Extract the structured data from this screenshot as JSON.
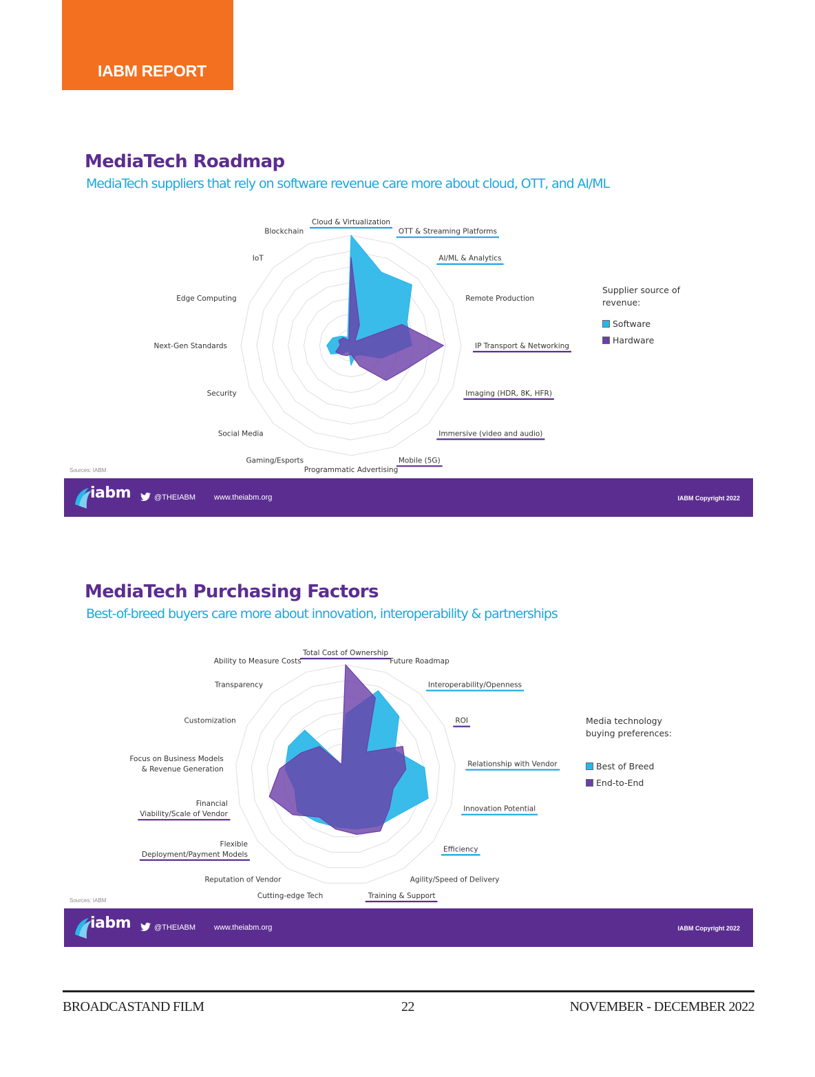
{
  "header": {
    "label": "IABM REPORT"
  },
  "slides": [
    {
      "title": "MediaTech Roadmap",
      "subtitle": "MediaTech suppliers that rely on software revenue care more about cloud, OTT, and AI/ML",
      "source": "Sources: IABM",
      "legend": {
        "title_line1": "Supplier source of",
        "title_line2": "revenue:"
      },
      "footer": {
        "logo": "iabm",
        "handle": "@THEIABM",
        "url": "www.theiabm.org",
        "copyright": "IABM Copyright 2022"
      }
    },
    {
      "title": "MediaTech Purchasing Factors",
      "subtitle": "Best-of-breed buyers care more about innovation, interoperability & partnerships",
      "source": "Sources: IABM",
      "legend": {
        "title_line1": "Media technology",
        "title_line2": "buying preferences:"
      },
      "footer": {
        "logo": "iabm",
        "handle": "@THEIABM",
        "url": "www.theiabm.org",
        "copyright": "IABM Copyright 2022"
      }
    }
  ],
  "colors": {
    "orange": "#f37021",
    "purple": "#5b2d91",
    "blue": "#1aa7de",
    "softwareFill": "#29b6e8",
    "hardwareFill": "#6a3fa8"
  },
  "chart_data": [
    {
      "type": "radar",
      "categories": [
        "Cloud & Virtualization",
        "OTT & Streaming Platforms",
        "AI/ML & Analytics",
        "Remote Production",
        "IP Transport & Networking",
        "Imaging (HDR, 8K, HFR)",
        "Immersive (video and audio)",
        "Mobile (5G)",
        "Programmatic Advertising",
        "Gaming/Esports",
        "Social Media",
        "Security",
        "Next-Gen Standards",
        "Edge Computing",
        "IoT",
        "Blockchain"
      ],
      "underline": [
        "blue",
        "blue",
        "blue",
        "none",
        "purple",
        "purple",
        "purple",
        "purple",
        "none",
        "none",
        "none",
        "none",
        "none",
        "none",
        "none",
        "none"
      ],
      "series": [
        {
          "name": "Software",
          "color": "#29b6e8",
          "values": [
            1.0,
            0.72,
            0.78,
            0.55,
            0.55,
            0.3,
            0.12,
            0.1,
            0.18,
            0.05,
            0.1,
            0.2,
            0.22,
            0.18,
            0.12,
            0.08
          ]
        },
        {
          "name": "Hardware",
          "color": "#6a3fa8",
          "values": [
            0.8,
            0.2,
            0.05,
            0.5,
            0.84,
            0.55,
            0.45,
            0.2,
            0.08,
            0.1,
            0.12,
            0.15,
            0.1,
            0.12,
            0.1,
            0.05
          ]
        }
      ],
      "rings": 7
    },
    {
      "type": "radar",
      "categories": [
        "Total Cost of Ownership",
        "Future Roadmap",
        "Interoperability/Openness",
        "ROI",
        "Relationship with Vendor",
        "Innovation Potential",
        "Efficiency",
        "Agility/Speed of Delivery",
        "Training & Support",
        "Cutting-edge Tech",
        "Reputation of Vendor",
        "Flexible Deployment/Payment Models",
        "Financial Viability/Scale of Vendor",
        "Focus on Business Models & Revenue Generation",
        "Customization",
        "Transparency",
        "Ability to Measure Costs"
      ],
      "underline": [
        "purple",
        "none",
        "blue",
        "purple",
        "blue",
        "blue",
        "blue",
        "none",
        "purple",
        "none",
        "none",
        "purple",
        "purple",
        "none",
        "none",
        "none",
        "none"
      ],
      "series": [
        {
          "name": "Best of Breed",
          "color": "#29b6e8",
          "values": [
            0.55,
            0.82,
            0.72,
            0.5,
            0.72,
            0.78,
            0.6,
            0.55,
            0.5,
            0.48,
            0.5,
            0.55,
            0.48,
            0.55,
            0.58,
            0.55,
            0.1
          ]
        },
        {
          "name": "End-to-End",
          "color": "#6a3fa8",
          "values": [
            1.0,
            0.75,
            0.28,
            0.58,
            0.55,
            0.45,
            0.5,
            0.6,
            0.55,
            0.5,
            0.45,
            0.6,
            0.72,
            0.6,
            0.45,
            0.35,
            0.1
          ]
        }
      ],
      "rings": 7
    }
  ],
  "page_footer": {
    "left": "BROADCASTAND FILM",
    "page": "22",
    "right": "NOVEMBER - DECEMBER 2022"
  }
}
